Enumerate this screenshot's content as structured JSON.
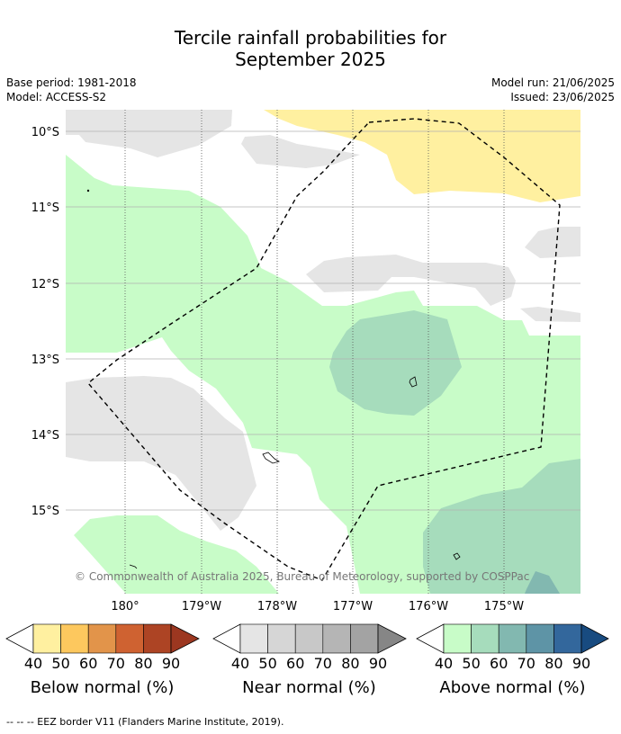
{
  "title_line1": "Tercile rainfall probabilities for",
  "title_line2": "September 2025",
  "meta": {
    "base_period": "Base period: 1981-2018",
    "model": "Model: ACCESS-S2",
    "model_run": "Model run: 21/06/2025",
    "issued": "Issued: 23/06/2025"
  },
  "map": {
    "lat_labels": [
      "10°S",
      "11°S",
      "12°S",
      "13°S",
      "14°S",
      "15°S"
    ],
    "lon_labels": [
      "180°",
      "179°W",
      "178°W",
      "177°W",
      "176°W",
      "175°W"
    ],
    "copyright": "© Commonwealth of Australia 2025, Bureau of Meteorology, supported by COSPPac"
  },
  "colorbars": [
    {
      "label": "Below normal (%)",
      "ticks": [
        "40",
        "50",
        "60",
        "70",
        "80",
        "90"
      ],
      "colors": [
        "#fff0a0",
        "#fdc85e",
        "#e2944a",
        "#cf6231",
        "#ad4424",
        "#9c3720"
      ]
    },
    {
      "label": "Near normal (%)",
      "ticks": [
        "40",
        "50",
        "60",
        "70",
        "80",
        "90"
      ],
      "colors": [
        "#e5e5e5",
        "#d6d6d6",
        "#c8c8c8",
        "#b5b5b5",
        "#a3a3a3",
        "#868686"
      ]
    },
    {
      "label": "Above normal (%)",
      "ticks": [
        "40",
        "50",
        "60",
        "70",
        "80",
        "90"
      ],
      "colors": [
        "#c8fcc8",
        "#a6dcbc",
        "#82b8b0",
        "#5e94a6",
        "#33679c",
        "#184b80"
      ]
    }
  ],
  "footnote": "--  --  -- EEZ border V11 (Flanders Marine Institute, 2019)."
}
